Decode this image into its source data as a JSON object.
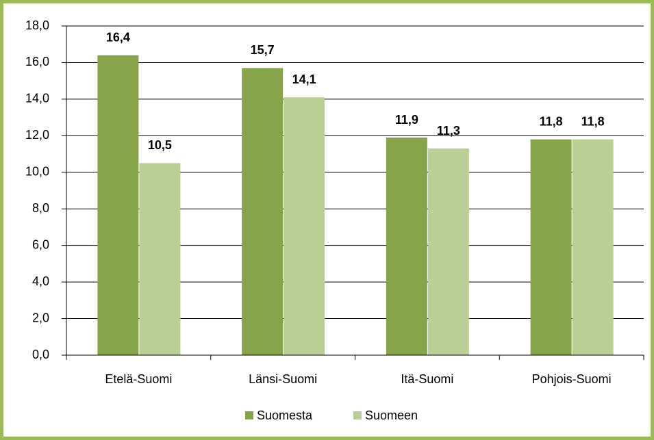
{
  "chart_data": {
    "type": "bar",
    "categories": [
      "Etelä-Suomi",
      "Länsi-Suomi",
      "Itä-Suomi",
      "Pohjois-Suomi"
    ],
    "series": [
      {
        "name": "Suomesta",
        "color": "#86a44a",
        "values": [
          16.4,
          15.7,
          11.9,
          11.8
        ],
        "value_labels": [
          "16,4",
          "15,7",
          "11,9",
          "11,8"
        ]
      },
      {
        "name": "Suomeen",
        "color": "#b9cf96",
        "values": [
          10.5,
          14.1,
          11.3,
          11.8
        ],
        "value_labels": [
          "10,5",
          "14,1",
          "11,3",
          "11,8"
        ]
      }
    ],
    "ylim": [
      0,
      18
    ],
    "yticks": [
      {
        "value": 0,
        "label": "0,0"
      },
      {
        "value": 2,
        "label": "2,0"
      },
      {
        "value": 4,
        "label": "4,0"
      },
      {
        "value": 6,
        "label": "6,0"
      },
      {
        "value": 8,
        "label": "8,0"
      },
      {
        "value": 10,
        "label": "10,0"
      },
      {
        "value": 12,
        "label": "12,0"
      },
      {
        "value": 14,
        "label": "14,0"
      },
      {
        "value": 16,
        "label": "16,0"
      },
      {
        "value": 18,
        "label": "18,0"
      }
    ],
    "grid": true,
    "legend": "bottom"
  }
}
